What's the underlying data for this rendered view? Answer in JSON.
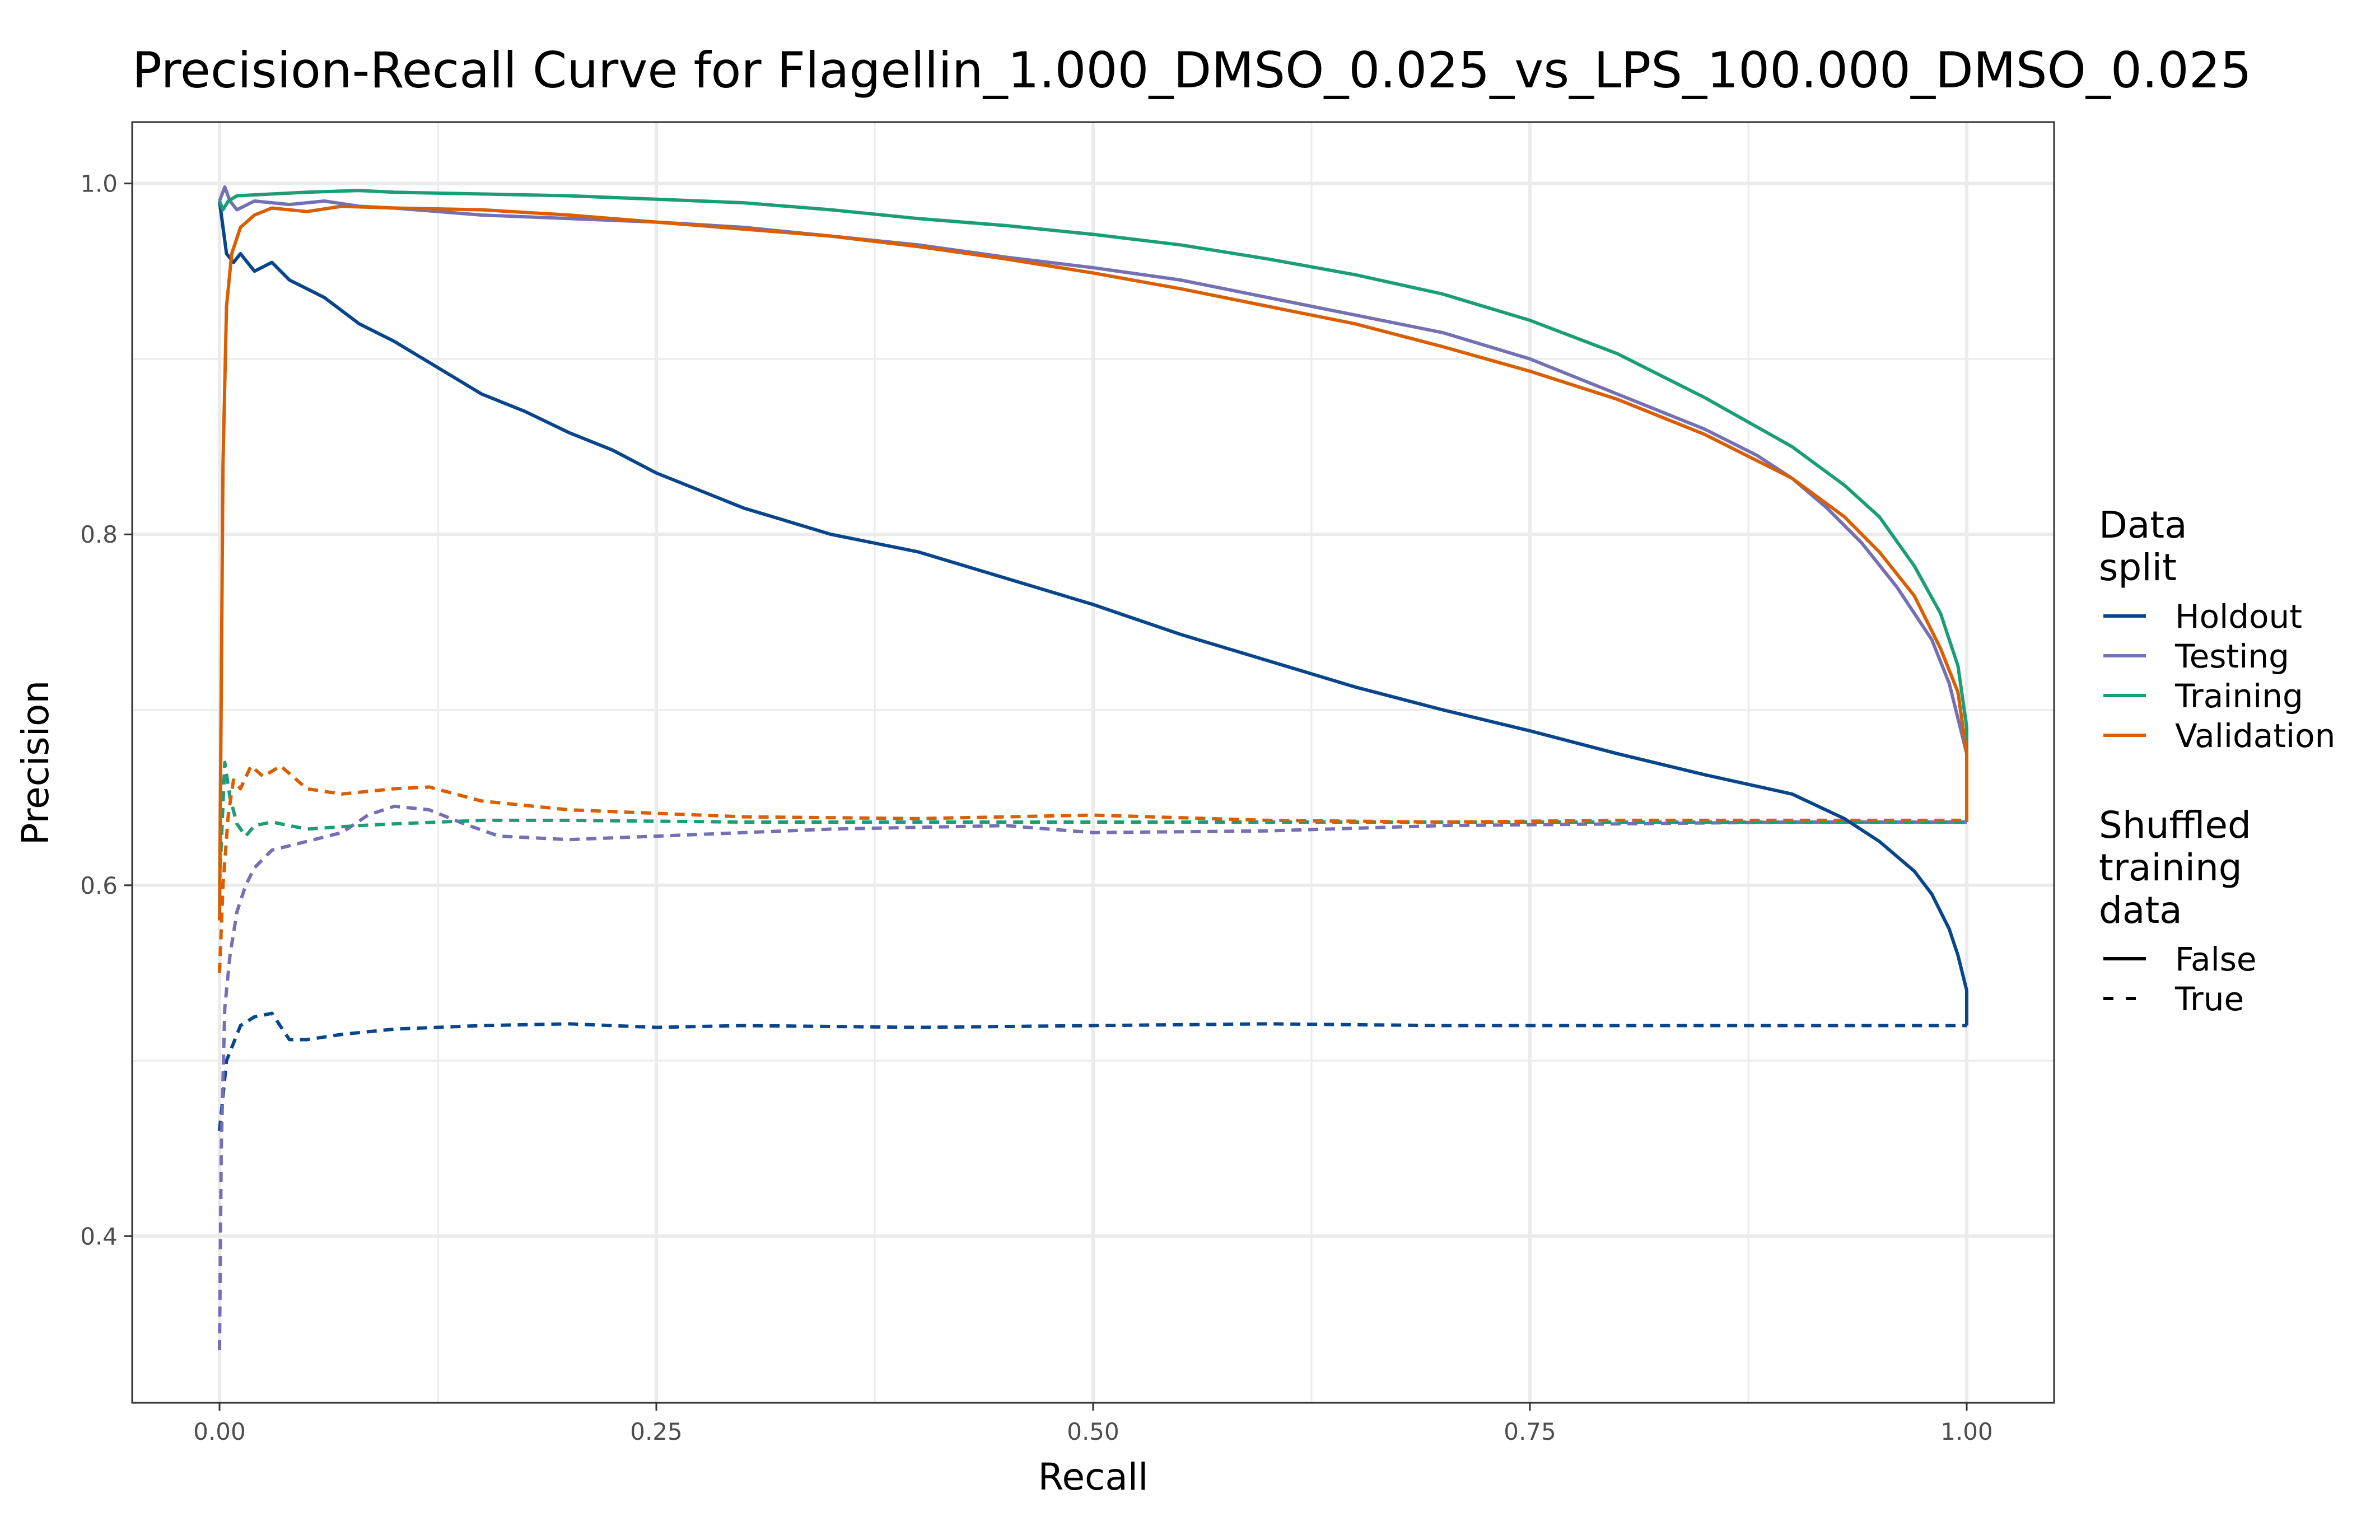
{
  "chart_data": {
    "type": "line",
    "title": "Precision-Recall Curve for Flagellin_1.000_DMSO_0.025_vs_LPS_100.000_DMSO_0.025",
    "xlabel": "Recall",
    "ylabel": "Precision",
    "xlim": [
      -0.05,
      1.05
    ],
    "ylim": [
      0.305,
      1.035
    ],
    "x_ticks": [
      0.0,
      0.25,
      0.5,
      0.75,
      1.0
    ],
    "x_tick_labels": [
      "0.00",
      "0.25",
      "0.50",
      "0.75",
      "1.00"
    ],
    "y_ticks": [
      0.4,
      0.6,
      0.8,
      1.0
    ],
    "y_tick_labels": [
      "0.4",
      "0.6",
      "0.8",
      "1.0"
    ],
    "grid": true,
    "legend_position": "right",
    "legend": {
      "color_title": [
        "Data",
        "split"
      ],
      "color_entries": [
        {
          "label": "Holdout",
          "color": "#08458a"
        },
        {
          "label": "Testing",
          "color": "#7570b3"
        },
        {
          "label": "Training",
          "color": "#1b9e77"
        },
        {
          "label": "Validation",
          "color": "#d95f02"
        }
      ],
      "linetype_title": [
        "Shuffled",
        "training",
        "data"
      ],
      "linetype_entries": [
        {
          "label": "False",
          "dash": "solid"
        },
        {
          "label": "True",
          "dash": "dashed"
        }
      ]
    },
    "series": [
      {
        "split": "Holdout",
        "shuffled": "False",
        "color": "#08458a",
        "x": [
          0.0,
          0.002,
          0.004,
          0.008,
          0.012,
          0.02,
          0.03,
          0.04,
          0.05,
          0.06,
          0.08,
          0.1,
          0.125,
          0.15,
          0.175,
          0.2,
          0.225,
          0.25,
          0.3,
          0.35,
          0.4,
          0.45,
          0.5,
          0.55,
          0.6,
          0.65,
          0.7,
          0.75,
          0.8,
          0.85,
          0.9,
          0.93,
          0.95,
          0.97,
          0.98,
          0.99,
          0.995,
          1.0,
          1.0
        ],
        "y": [
          0.99,
          0.975,
          0.96,
          0.955,
          0.96,
          0.95,
          0.955,
          0.945,
          0.94,
          0.935,
          0.92,
          0.91,
          0.895,
          0.88,
          0.87,
          0.858,
          0.848,
          0.835,
          0.815,
          0.8,
          0.79,
          0.775,
          0.76,
          0.743,
          0.728,
          0.713,
          0.7,
          0.688,
          0.675,
          0.663,
          0.652,
          0.638,
          0.625,
          0.608,
          0.595,
          0.575,
          0.56,
          0.54,
          0.52
        ]
      },
      {
        "split": "Testing",
        "shuffled": "False",
        "color": "#7570b3",
        "x": [
          0.0,
          0.003,
          0.006,
          0.01,
          0.02,
          0.04,
          0.06,
          0.08,
          0.1,
          0.15,
          0.2,
          0.25,
          0.3,
          0.35,
          0.4,
          0.45,
          0.5,
          0.55,
          0.6,
          0.65,
          0.7,
          0.75,
          0.8,
          0.85,
          0.88,
          0.9,
          0.92,
          0.94,
          0.96,
          0.98,
          0.99,
          1.0,
          1.0
        ],
        "y": [
          0.99,
          0.998,
          0.99,
          0.985,
          0.99,
          0.988,
          0.99,
          0.987,
          0.986,
          0.982,
          0.98,
          0.978,
          0.975,
          0.97,
          0.965,
          0.958,
          0.952,
          0.945,
          0.935,
          0.925,
          0.915,
          0.9,
          0.88,
          0.86,
          0.845,
          0.832,
          0.815,
          0.795,
          0.77,
          0.74,
          0.715,
          0.675,
          0.636
        ]
      },
      {
        "split": "Training",
        "shuffled": "False",
        "color": "#1b9e77",
        "x": [
          0.0,
          0.002,
          0.005,
          0.01,
          0.03,
          0.05,
          0.08,
          0.1,
          0.15,
          0.2,
          0.25,
          0.3,
          0.35,
          0.4,
          0.45,
          0.5,
          0.55,
          0.6,
          0.65,
          0.7,
          0.75,
          0.8,
          0.85,
          0.9,
          0.93,
          0.95,
          0.97,
          0.985,
          0.995,
          1.0,
          1.0
        ],
        "y": [
          0.99,
          0.985,
          0.99,
          0.993,
          0.994,
          0.995,
          0.996,
          0.995,
          0.994,
          0.993,
          0.991,
          0.989,
          0.985,
          0.98,
          0.976,
          0.971,
          0.965,
          0.957,
          0.948,
          0.937,
          0.922,
          0.903,
          0.878,
          0.85,
          0.828,
          0.81,
          0.782,
          0.755,
          0.725,
          0.69,
          0.636
        ]
      },
      {
        "split": "Validation",
        "shuffled": "False",
        "color": "#d95f02",
        "x": [
          0.0,
          0.002,
          0.004,
          0.007,
          0.012,
          0.02,
          0.03,
          0.05,
          0.07,
          0.1,
          0.15,
          0.2,
          0.25,
          0.3,
          0.35,
          0.4,
          0.45,
          0.5,
          0.55,
          0.6,
          0.65,
          0.7,
          0.75,
          0.8,
          0.85,
          0.9,
          0.93,
          0.95,
          0.97,
          0.985,
          0.995,
          1.0,
          1.0
        ],
        "y": [
          0.58,
          0.84,
          0.93,
          0.96,
          0.975,
          0.982,
          0.986,
          0.984,
          0.987,
          0.986,
          0.985,
          0.982,
          0.978,
          0.974,
          0.97,
          0.964,
          0.957,
          0.949,
          0.94,
          0.93,
          0.92,
          0.907,
          0.893,
          0.877,
          0.857,
          0.832,
          0.81,
          0.79,
          0.765,
          0.735,
          0.71,
          0.675,
          0.636
        ]
      },
      {
        "split": "Holdout",
        "shuffled": "True",
        "color": "#08458a",
        "x": [
          0.0,
          0.002,
          0.004,
          0.008,
          0.012,
          0.02,
          0.03,
          0.04,
          0.05,
          0.07,
          0.1,
          0.15,
          0.2,
          0.25,
          0.3,
          0.4,
          0.5,
          0.6,
          0.7,
          0.8,
          0.9,
          1.0
        ],
        "y": [
          0.46,
          0.48,
          0.5,
          0.51,
          0.52,
          0.525,
          0.527,
          0.512,
          0.512,
          0.515,
          0.518,
          0.52,
          0.521,
          0.519,
          0.52,
          0.519,
          0.52,
          0.521,
          0.52,
          0.52,
          0.52,
          0.52
        ]
      },
      {
        "split": "Testing",
        "shuffled": "True",
        "color": "#7570b3",
        "x": [
          0.0,
          0.001,
          0.003,
          0.006,
          0.01,
          0.015,
          0.02,
          0.03,
          0.05,
          0.07,
          0.085,
          0.1,
          0.12,
          0.14,
          0.16,
          0.2,
          0.25,
          0.3,
          0.35,
          0.4,
          0.45,
          0.5,
          0.6,
          0.7,
          0.8,
          0.9,
          1.0
        ],
        "y": [
          0.335,
          0.45,
          0.53,
          0.56,
          0.585,
          0.6,
          0.61,
          0.62,
          0.625,
          0.63,
          0.64,
          0.645,
          0.643,
          0.635,
          0.628,
          0.626,
          0.628,
          0.63,
          0.632,
          0.633,
          0.634,
          0.63,
          0.631,
          0.634,
          0.635,
          0.636,
          0.636
        ]
      },
      {
        "split": "Training",
        "shuffled": "True",
        "color": "#1b9e77",
        "x": [
          0.0,
          0.003,
          0.006,
          0.01,
          0.015,
          0.02,
          0.03,
          0.05,
          0.08,
          0.1,
          0.15,
          0.2,
          0.3,
          0.4,
          0.5,
          0.6,
          0.7,
          0.8,
          0.9,
          1.0
        ],
        "y": [
          0.6,
          0.67,
          0.65,
          0.635,
          0.628,
          0.634,
          0.636,
          0.632,
          0.634,
          0.635,
          0.637,
          0.637,
          0.636,
          0.636,
          0.636,
          0.636,
          0.636,
          0.636,
          0.636,
          0.636
        ]
      },
      {
        "split": "Validation",
        "shuffled": "True",
        "color": "#d95f02",
        "x": [
          0.0,
          0.002,
          0.005,
          0.008,
          0.012,
          0.018,
          0.025,
          0.035,
          0.05,
          0.07,
          0.1,
          0.12,
          0.15,
          0.2,
          0.25,
          0.3,
          0.4,
          0.5,
          0.6,
          0.7,
          0.8,
          0.9,
          1.0
        ],
        "y": [
          0.55,
          0.6,
          0.64,
          0.66,
          0.655,
          0.668,
          0.662,
          0.668,
          0.655,
          0.652,
          0.655,
          0.656,
          0.648,
          0.643,
          0.641,
          0.639,
          0.638,
          0.64,
          0.637,
          0.636,
          0.637,
          0.637,
          0.637
        ]
      }
    ]
  }
}
